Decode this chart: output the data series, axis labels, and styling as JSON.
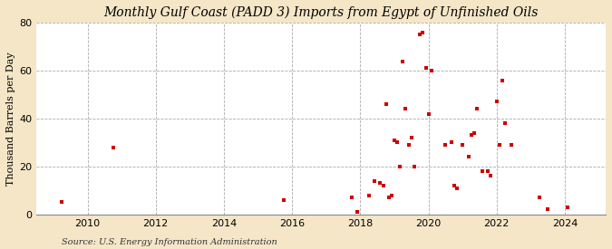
{
  "title": "Monthly Gulf Coast (PADD 3) Imports from Egypt of Unfinished Oils",
  "ylabel": "Thousand Barrels per Day",
  "source": "Source: U.S. Energy Information Administration",
  "fig_bg_color": "#f5e6c8",
  "plot_bg_color": "#ffffff",
  "marker_color": "#cc0000",
  "marker_size": 12,
  "xlim": [
    2008.5,
    2025.2
  ],
  "ylim": [
    0,
    80
  ],
  "yticks": [
    0,
    20,
    40,
    60,
    80
  ],
  "xticks": [
    2010,
    2012,
    2014,
    2016,
    2018,
    2020,
    2022,
    2024
  ],
  "data_x": [
    2009.25,
    2010.75,
    2015.75,
    2017.75,
    2017.92,
    2018.25,
    2018.42,
    2018.58,
    2018.67,
    2018.75,
    2018.83,
    2018.92,
    2019.0,
    2019.08,
    2019.17,
    2019.25,
    2019.33,
    2019.42,
    2019.5,
    2019.58,
    2019.75,
    2019.83,
    2019.92,
    2020.0,
    2020.08,
    2020.5,
    2020.67,
    2020.75,
    2020.83,
    2021.0,
    2021.17,
    2021.25,
    2021.33,
    2021.42,
    2021.58,
    2021.75,
    2021.83,
    2022.0,
    2022.08,
    2022.17,
    2022.25,
    2022.42,
    2023.25,
    2023.5,
    2024.08
  ],
  "data_y": [
    5,
    28,
    6,
    7,
    1,
    8,
    14,
    13,
    12,
    46,
    7,
    8,
    31,
    30,
    20,
    64,
    44,
    29,
    32,
    20,
    75,
    76,
    61,
    42,
    60,
    29,
    30,
    12,
    11,
    29,
    24,
    33,
    34,
    44,
    18,
    18,
    16,
    47,
    29,
    56,
    38,
    29,
    7,
    2,
    3
  ],
  "title_fontsize": 10,
  "tick_fontsize": 8,
  "ylabel_fontsize": 8,
  "source_fontsize": 7
}
